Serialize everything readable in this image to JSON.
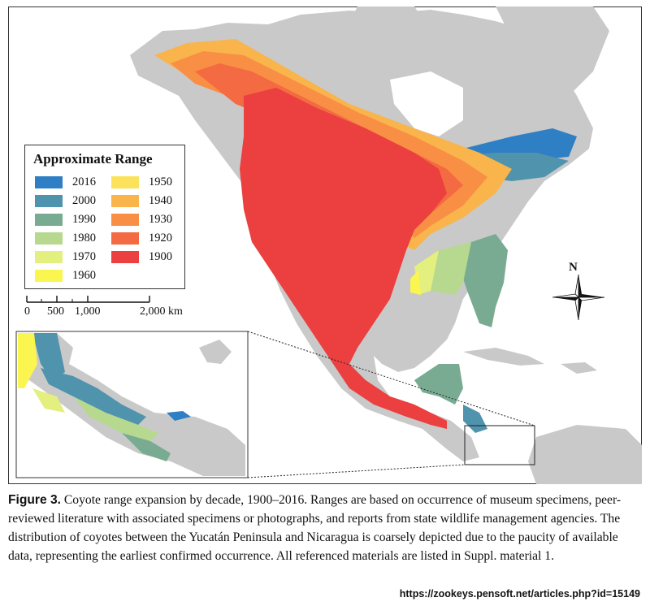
{
  "legend": {
    "title": "Approximate Range",
    "items": [
      {
        "label": "2016",
        "color": "#2f7fc4"
      },
      {
        "label": "2000",
        "color": "#4f93ad"
      },
      {
        "label": "1990",
        "color": "#79ab92"
      },
      {
        "label": "1980",
        "color": "#b6d98f"
      },
      {
        "label": "1970",
        "color": "#e3ef7e"
      },
      {
        "label": "1960",
        "color": "#fbf550"
      },
      {
        "label": "1950",
        "color": "#fbe25a"
      },
      {
        "label": "1940",
        "color": "#f9b44b"
      },
      {
        "label": "1930",
        "color": "#f88f45"
      },
      {
        "label": "1920",
        "color": "#f46a42"
      },
      {
        "label": "1900",
        "color": "#ec3f3f"
      }
    ]
  },
  "scalebar": {
    "labels": [
      "0",
      "500",
      "1,000",
      "2,000 km"
    ]
  },
  "compass": {
    "label": "N"
  },
  "map_colors": {
    "ocean": "#ffffff",
    "land": "#c9c9c9",
    "border": "#ffffff"
  },
  "caption": {
    "label": "Figure 3.",
    "text": " Coyote range expansion by decade, 1900–2016. Ranges are based on occurrence of museum specimens, peer-reviewed literature with associated specimens or photographs, and reports from state wildlife management agencies. The distribution of coyotes between the Yucatán Peninsula and Nicaragua is coarsely depicted due to the paucity of available data, representing the earliest confirmed occurrence. All referenced materials are listed in Suppl. material 1."
  },
  "source_url": "https://zookeys.pensoft.net/articles.php?id=15149"
}
